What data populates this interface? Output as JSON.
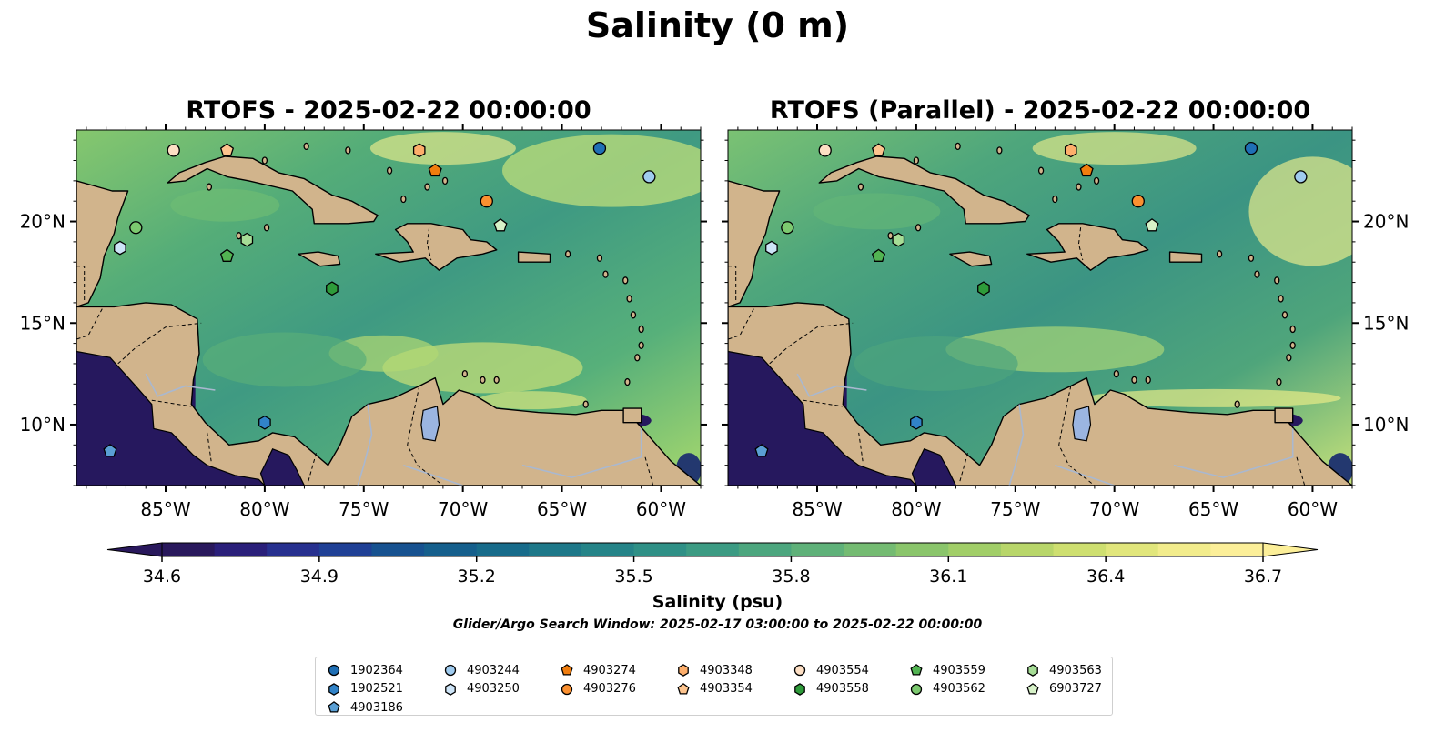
{
  "title": "Salinity (0 m)",
  "panels": [
    {
      "title": "RTOFS - 2025-02-22 00:00:00"
    },
    {
      "title": "RTOFS (Parallel) - 2025-02-22 00:00:00"
    }
  ],
  "map": {
    "lon_range": [
      -89.5,
      -58.0
    ],
    "lat_range": [
      7.0,
      24.5
    ],
    "x_ticks": [
      {
        "lon": -85,
        "label": "85°W"
      },
      {
        "lon": -80,
        "label": "80°W"
      },
      {
        "lon": -75,
        "label": "75°W"
      },
      {
        "lon": -70,
        "label": "70°W"
      },
      {
        "lon": -65,
        "label": "65°W"
      },
      {
        "lon": -60,
        "label": "60°W"
      }
    ],
    "y_ticks": [
      {
        "lat": 10,
        "label": "10°N"
      },
      {
        "lat": 15,
        "label": "15°N"
      },
      {
        "lat": 20,
        "label": "20°N"
      }
    ],
    "colors": {
      "land": "#d1b48c",
      "coast": "#000000",
      "lake": "#9bb5e1",
      "river": "#a9b8d0",
      "pacific": "#26185e",
      "caribbean": "#3f9a82",
      "low_salinity_edge": "#23386f",
      "high_salinity_atlantic": "#9bd46d"
    }
  },
  "colorbar": {
    "label": "Salinity (psu)",
    "min": 34.6,
    "max": 36.7,
    "ticks": [
      34.6,
      34.9,
      35.2,
      35.5,
      35.8,
      36.1,
      36.4,
      36.7
    ],
    "tick_labels": [
      "34.6",
      "34.9",
      "35.2",
      "35.5",
      "35.8",
      "36.1",
      "36.4",
      "36.7"
    ],
    "colormap": "haline",
    "extend": "both"
  },
  "search_window": "Glider/Argo Search Window: 2025-02-17 03:00:00 to 2025-02-22 00:00:00",
  "platforms": [
    {
      "id": "1902364",
      "marker": "circle",
      "color": "#1f6fb5",
      "lon": -63.1,
      "lat": 23.6
    },
    {
      "id": "1902521",
      "marker": "hexagon",
      "color": "#3183c8",
      "lon": -80.0,
      "lat": 10.1
    },
    {
      "id": "4903186",
      "marker": "pentagon",
      "color": "#5a9fd4",
      "lon": -87.8,
      "lat": 8.7
    },
    {
      "id": "4903244",
      "marker": "circle",
      "color": "#9fcbef",
      "lon": -60.6,
      "lat": 22.2
    },
    {
      "id": "4903250",
      "marker": "hexagon",
      "color": "#cde4f7",
      "lon": -87.3,
      "lat": 18.7
    },
    {
      "id": "4903274",
      "marker": "pentagon",
      "color": "#f07d0e",
      "lon": -71.4,
      "lat": 22.5
    },
    {
      "id": "4903276",
      "marker": "circle",
      "color": "#fb9030",
      "lon": -68.8,
      "lat": 21.0
    },
    {
      "id": "4903348",
      "marker": "hexagon",
      "color": "#fdae6b",
      "lon": -72.2,
      "lat": 23.5
    },
    {
      "id": "4903354",
      "marker": "pentagon",
      "color": "#fdc48e",
      "lon": -81.9,
      "lat": 23.5
    },
    {
      "id": "4903554",
      "marker": "circle",
      "color": "#fddfc4",
      "lon": -84.6,
      "lat": 23.5
    },
    {
      "id": "4903558",
      "marker": "hexagon",
      "color": "#2e9b3a",
      "lon": -76.6,
      "lat": 16.7
    },
    {
      "id": "4903559",
      "marker": "pentagon",
      "color": "#52b452",
      "lon": -81.9,
      "lat": 18.3
    },
    {
      "id": "4903562",
      "marker": "circle",
      "color": "#7cc96f",
      "lon": -86.5,
      "lat": 19.7
    },
    {
      "id": "4903563",
      "marker": "hexagon",
      "color": "#a6dd96",
      "lon": -80.9,
      "lat": 19.1
    },
    {
      "id": "6903727",
      "marker": "pentagon",
      "color": "#d7f2c8",
      "lon": -68.1,
      "lat": 19.8
    }
  ]
}
